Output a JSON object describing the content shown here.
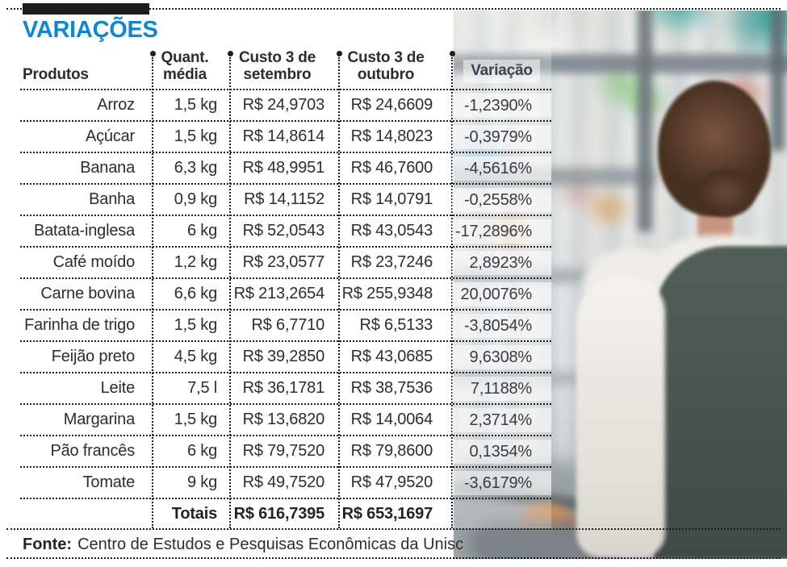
{
  "title": "VARIAÇÕES",
  "colors": {
    "accent_blue": "#0e87d1",
    "text": "#2d2d30",
    "rule_black": "#1c1c1c",
    "variation_chip_bg": "rgba(255,255,255,0.55)"
  },
  "table": {
    "headers": {
      "produtos": "Produtos",
      "quant_line1": "Quant.",
      "quant_line2": "média",
      "setembro_line1": "Custo 3 de",
      "setembro_line2": "setembro",
      "outubro_line1": "Custo 3 de",
      "outubro_line2": "outubro",
      "variacao": "Variação"
    },
    "rows": [
      {
        "produto": "Arroz",
        "quant": "1,5 kg",
        "custo_setembro": "R$ 24,9703",
        "custo_outubro": "R$ 24,6609",
        "variacao": "-1,2390%"
      },
      {
        "produto": "Açúcar",
        "quant": "1,5 kg",
        "custo_setembro": "R$ 14,8614",
        "custo_outubro": "R$ 14,8023",
        "variacao": "-0,3979%"
      },
      {
        "produto": "Banana",
        "quant": "6,3 kg",
        "custo_setembro": "R$ 48,9951",
        "custo_outubro": "R$ 46,7600",
        "variacao": "-4,5616%"
      },
      {
        "produto": "Banha",
        "quant": "0,9 kg",
        "custo_setembro": "R$ 14,1152",
        "custo_outubro": "R$ 14,0791",
        "variacao": "-0,2558%"
      },
      {
        "produto": "Batata-inglesa",
        "quant": "6 kg",
        "custo_setembro": "R$ 52,0543",
        "custo_outubro": "R$ 43,0543",
        "variacao": "-17,2896%"
      },
      {
        "produto": "Café moído",
        "quant": "1,2 kg",
        "custo_setembro": "R$ 23,0577",
        "custo_outubro": "R$ 23,7246",
        "variacao": "2,8923%"
      },
      {
        "produto": "Carne bovina",
        "quant": "6,6 kg",
        "custo_setembro": "R$ 213,2654",
        "custo_outubro": "R$ 255,9348",
        "variacao": "20,0076%"
      },
      {
        "produto": "Farinha de trigo",
        "quant": "1,5 kg",
        "custo_setembro": "R$ 6,7710",
        "custo_outubro": "R$ 6,5133",
        "variacao": "-3,8054%"
      },
      {
        "produto": "Feijão preto",
        "quant": "4,5 kg",
        "custo_setembro": "R$ 39,2850",
        "custo_outubro": "R$ 43,0685",
        "variacao": "9,6308%"
      },
      {
        "produto": "Leite",
        "quant": "7,5 l",
        "custo_setembro": "R$ 36,1781",
        "custo_outubro": "R$ 38,7536",
        "variacao": "7,1188%"
      },
      {
        "produto": "Margarina",
        "quant": "1,5 kg",
        "custo_setembro": "R$ 13,6820",
        "custo_outubro": "R$ 14,0064",
        "variacao": "2,3714%"
      },
      {
        "produto": "Pão francês",
        "quant": "6 kg",
        "custo_setembro": "R$ 79,7520",
        "custo_outubro": "R$ 79,8600",
        "variacao": "0,1354%"
      },
      {
        "produto": "Tomate",
        "quant": "9 kg",
        "custo_setembro": "R$ 49,7520",
        "custo_outubro": "R$ 47,9520",
        "variacao": "-3,6179%"
      }
    ],
    "totals": {
      "label": "Totais",
      "custo_setembro": "R$ 616,7395",
      "custo_outubro": "R$ 653,1697"
    }
  },
  "source": {
    "label": "Fonte:",
    "text": "Centro de Estudos e Pesquisas Econômicas da Unisc"
  },
  "chart_data": {
    "type": "table",
    "title": "VARIAÇÕES",
    "columns": [
      "Produtos",
      "Quant. média",
      "Custo 3 de setembro",
      "Custo 3 de outubro",
      "Variação"
    ],
    "rows": [
      [
        "Arroz",
        "1,5 kg",
        "R$ 24,9703",
        "R$ 24,6609",
        "-1,2390%"
      ],
      [
        "Açúcar",
        "1,5 kg",
        "R$ 14,8614",
        "R$ 14,8023",
        "-0,3979%"
      ],
      [
        "Banana",
        "6,3 kg",
        "R$ 48,9951",
        "R$ 46,7600",
        "-4,5616%"
      ],
      [
        "Banha",
        "0,9 kg",
        "R$ 14,1152",
        "R$ 14,0791",
        "-0,2558%"
      ],
      [
        "Batata-inglesa",
        "6 kg",
        "R$ 52,0543",
        "R$ 43,0543",
        "-17,2896%"
      ],
      [
        "Café moído",
        "1,2 kg",
        "R$ 23,0577",
        "R$ 23,7246",
        "2,8923%"
      ],
      [
        "Carne bovina",
        "6,6 kg",
        "R$ 213,2654",
        "R$ 255,9348",
        "20,0076%"
      ],
      [
        "Farinha de trigo",
        "1,5 kg",
        "R$ 6,7710",
        "R$ 6,5133",
        "-3,8054%"
      ],
      [
        "Feijão preto",
        "4,5 kg",
        "R$ 39,2850",
        "R$ 43,0685",
        "9,6308%"
      ],
      [
        "Leite",
        "7,5 l",
        "R$ 36,1781",
        "R$ 38,7536",
        "7,1188%"
      ],
      [
        "Margarina",
        "1,5 kg",
        "R$ 13,6820",
        "R$ 14,0064",
        "2,3714%"
      ],
      [
        "Pão francês",
        "6 kg",
        "R$ 79,7520",
        "R$ 79,8600",
        "0,1354%"
      ],
      [
        "Tomate",
        "9 kg",
        "R$ 49,7520",
        "R$ 47,9520",
        "-3,6179%"
      ]
    ],
    "totals_row": [
      "",
      "Totais",
      "R$ 616,7395",
      "R$ 653,1697",
      ""
    ],
    "source": "Fonte: Centro de Estudos e Pesquisas Econômicas da Unisc"
  }
}
